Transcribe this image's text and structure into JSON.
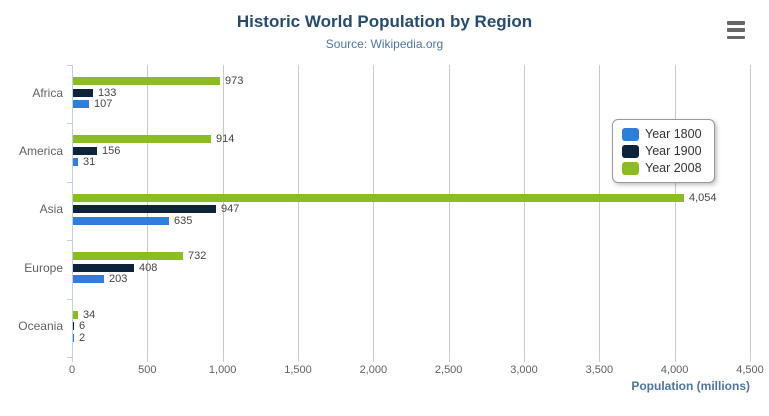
{
  "header": {
    "menu_icon": "hamburger-menu-icon"
  },
  "chart_data": {
    "type": "bar",
    "orientation": "horizontal",
    "title": "Historic World Population by Region",
    "subtitle": "Source: Wikipedia.org",
    "categories": [
      "Africa",
      "America",
      "Asia",
      "Europe",
      "Oceania"
    ],
    "series": [
      {
        "name": "Year 1800",
        "color": "#2f7ed8",
        "values": [
          107,
          31,
          635,
          203,
          2
        ]
      },
      {
        "name": "Year 1900",
        "color": "#0d233a",
        "values": [
          133,
          156,
          947,
          408,
          6
        ]
      },
      {
        "name": "Year 2008",
        "color": "#8bbc21",
        "values": [
          973,
          914,
          4054,
          732,
          34
        ]
      }
    ],
    "bar_order_top_to_bottom": [
      "Year 2008",
      "Year 1900",
      "Year 1800"
    ],
    "data_labels": true,
    "xlabel": "Population (millions)",
    "xlim": [
      0,
      4500
    ],
    "xtick_step": 500,
    "xticks": [
      "0",
      "500",
      "1,000",
      "1,500",
      "2,000",
      "2,500",
      "3,000",
      "3,500",
      "4,000",
      "4,500"
    ],
    "grid": true,
    "legend_position": "right-inside",
    "colors": {
      "title": "#274b6d",
      "subtitle": "#4d759e",
      "axis_title": "#4d759e",
      "tick_label": "#606060",
      "data_label": "#444444",
      "gridline": "#c9c9c9",
      "axis_line": "#c0d0e0"
    }
  }
}
